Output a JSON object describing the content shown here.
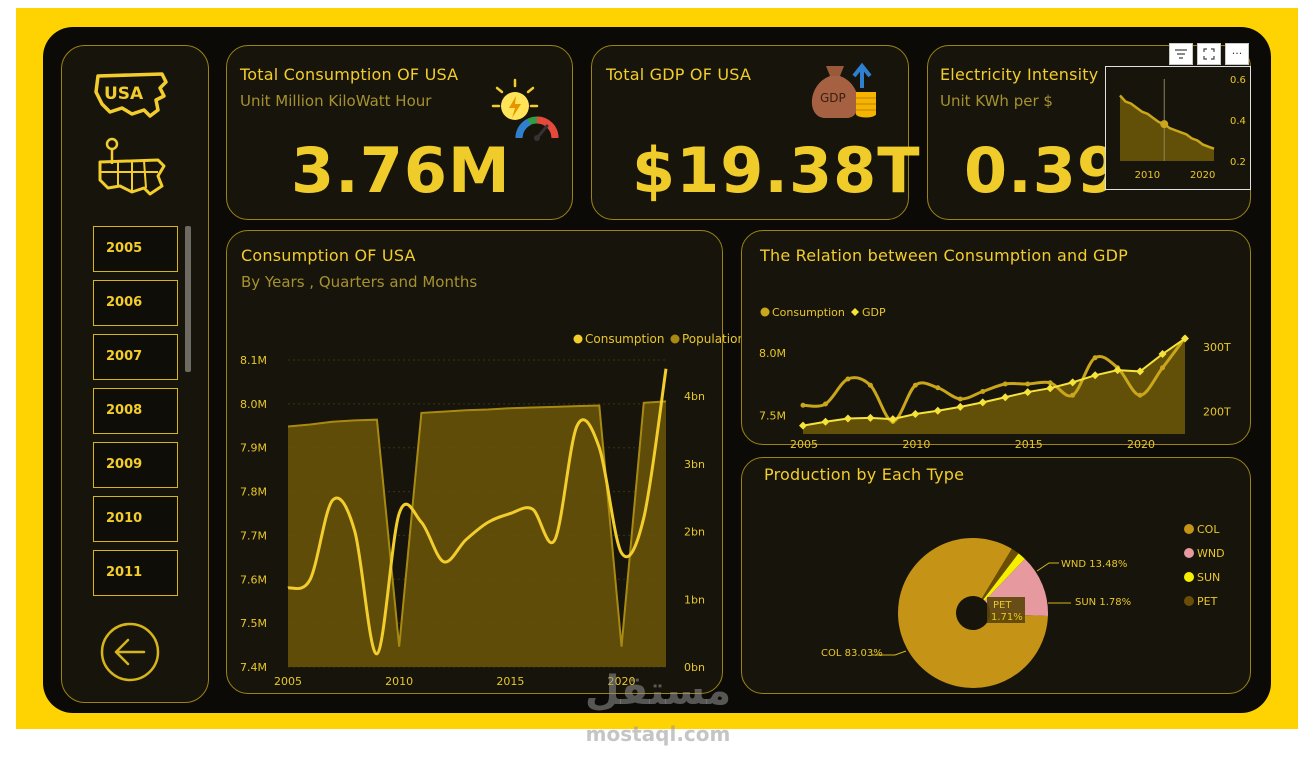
{
  "sidebar": {
    "years": [
      "2005",
      "2006",
      "2007",
      "2008",
      "2009",
      "2010",
      "2011"
    ],
    "logo_text": "USA"
  },
  "cards": {
    "consumption": {
      "title": "Total Consumption OF USA",
      "subtitle": "Unit Million KiloWatt Hour",
      "value": "3.76M"
    },
    "gdp": {
      "title": "Total GDP OF USA",
      "value": "$19.38T",
      "icon_text": "GDP"
    },
    "intensity": {
      "title": "Electricity Intensity",
      "subtitle": "Unit KWh per $",
      "value": "0.39",
      "mini_chart": {
        "type": "area",
        "x": [
          2005,
          2006,
          2007,
          2008,
          2009,
          2010,
          2011,
          2012,
          2013,
          2014,
          2015,
          2016,
          2017,
          2018,
          2019,
          2020,
          2021,
          2022
        ],
        "values": [
          0.52,
          0.49,
          0.48,
          0.46,
          0.44,
          0.43,
          0.41,
          0.39,
          0.38,
          0.36,
          0.35,
          0.34,
          0.33,
          0.31,
          0.3,
          0.28,
          0.27,
          0.26
        ],
        "xticks": [
          "2010",
          "2020"
        ],
        "yticks": [
          "0.6",
          "0.4",
          "0.2"
        ],
        "ylim": [
          0.2,
          0.6
        ]
      }
    }
  },
  "toolbar": {
    "filter_icon": "filter-icon",
    "focus_icon": "focus-icon",
    "more_label": "···"
  },
  "chart_data": [
    {
      "type": "line",
      "title": "Consumption OF USA",
      "subtitle": "By Years , Quarters and Months",
      "legend": [
        "Consumption",
        "Population"
      ],
      "legend_position": "top-right",
      "x": [
        2005,
        2006,
        2007,
        2008,
        2009,
        2010,
        2011,
        2012,
        2013,
        2014,
        2015,
        2016,
        2017,
        2018,
        2019,
        2020,
        2021,
        2022
      ],
      "series": [
        {
          "name": "Consumption",
          "axis": "left",
          "values": [
            7.58,
            7.6,
            7.78,
            7.71,
            7.43,
            7.75,
            7.73,
            7.64,
            7.69,
            7.73,
            7.75,
            7.76,
            7.69,
            7.95,
            7.9,
            7.66,
            7.74,
            8.08
          ]
        },
        {
          "name": "Population",
          "axis": "right",
          "values": [
            3.55,
            3.58,
            3.62,
            3.64,
            3.65,
            0.3,
            3.75,
            3.77,
            3.79,
            3.8,
            3.82,
            3.83,
            3.84,
            3.85,
            3.86,
            0.3,
            3.9,
            3.92
          ]
        }
      ],
      "yleft_ticks": [
        "8.1M",
        "8.0M",
        "7.9M",
        "7.8M",
        "7.7M",
        "7.6M",
        "7.5M",
        "7.4M"
      ],
      "yright_ticks": [
        "4bn",
        "3bn",
        "2bn",
        "1bn",
        "0bn"
      ],
      "xticks": [
        "2005",
        "2010",
        "2015",
        "2020"
      ],
      "ylim_left": [
        7.4,
        8.1
      ],
      "ylim_right": [
        0,
        4
      ]
    },
    {
      "type": "line",
      "title": "The Relation between Consumption and GDP",
      "legend": [
        "Consumption",
        "GDP"
      ],
      "legend_position": "top-left",
      "x": [
        2005,
        2006,
        2007,
        2008,
        2009,
        2010,
        2011,
        2012,
        2013,
        2014,
        2015,
        2016,
        2017,
        2018,
        2019,
        2020,
        2021,
        2022
      ],
      "series": [
        {
          "name": "Consumption",
          "axis": "left",
          "values": [
            7.58,
            7.59,
            7.79,
            7.74,
            7.45,
            7.74,
            7.72,
            7.63,
            7.69,
            7.75,
            7.75,
            7.76,
            7.66,
            7.96,
            7.88,
            7.66,
            7.88,
            8.12
          ]
        },
        {
          "name": "GDP",
          "axis": "right",
          "values": [
            178,
            184,
            189,
            190,
            188,
            196,
            201,
            207,
            214,
            222,
            230,
            236,
            245,
            256,
            264,
            262,
            289,
            313
          ]
        }
      ],
      "yleft_ticks": [
        "8.0M",
        "7.5M"
      ],
      "yright_ticks": [
        "300T",
        "200T"
      ],
      "xticks": [
        "2005",
        "2010",
        "2015",
        "2020"
      ]
    },
    {
      "type": "pie",
      "title": "Production by Each Type",
      "legend_position": "right",
      "slices": [
        {
          "label": "COL",
          "value": 83.03,
          "text": "COL 83.03%",
          "color": "#C59315"
        },
        {
          "label": "WND",
          "value": 13.48,
          "text": "WND 13.48%",
          "color": "#E799A0"
        },
        {
          "label": "SUN",
          "value": 1.78,
          "text": "SUN 1.78%",
          "color": "#F6F000"
        },
        {
          "label": "PET",
          "value": 1.71,
          "text": "PET 1.71%",
          "color": "#6B4E05"
        }
      ]
    }
  ],
  "watermark": {
    "line1": "مستقل",
    "line2": "mostaql.com"
  },
  "colors": {
    "accent": "#FFD301",
    "panel": "#17140b",
    "text": "#F2CD2B",
    "area": "#6b5608"
  }
}
